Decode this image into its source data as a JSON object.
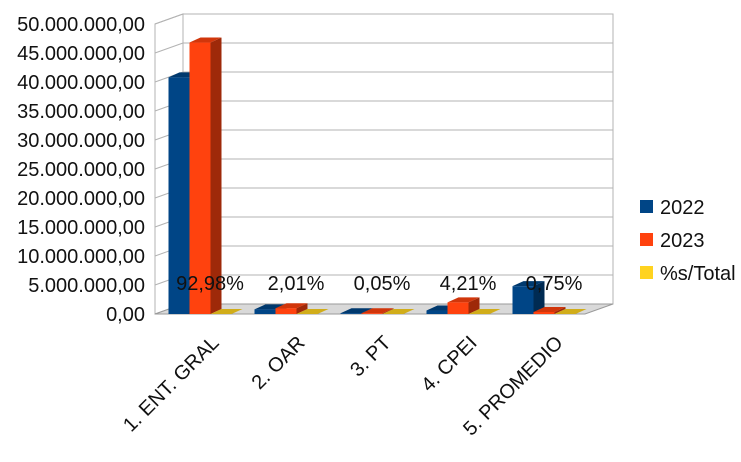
{
  "chart_data": {
    "type": "bar",
    "categories": [
      "1. ENT. GRAL",
      "2. OAR",
      "3. PT",
      "4. CPEI",
      "5. PROMEDIO"
    ],
    "series": [
      {
        "name": "2022",
        "values": [
          40800000,
          800000,
          50000,
          600000,
          4800000
        ],
        "color": "#004586"
      },
      {
        "name": "2023",
        "values": [
          46800000,
          1000000,
          40000,
          2000000,
          350000
        ],
        "color": "#ff420e"
      },
      {
        "name": "%s/Total",
        "values": [
          0.9298,
          0.0201,
          0.0005,
          0.0421,
          0.0075
        ],
        "color": "#ffd320"
      }
    ],
    "data_labels": [
      "92,98%",
      "2,01%",
      "0,05%",
      "4,21%",
      "0,75%"
    ],
    "y_ticks": [
      "0,00",
      "5.000.000,00",
      "10.000.000,00",
      "15.000.000,00",
      "20.000.000,00",
      "25.000.000,00",
      "30.000.000,00",
      "35.000.000,00",
      "40.000.000,00",
      "45.000.000,00",
      "50.000.000,00"
    ],
    "ylim": [
      0,
      50000000
    ],
    "grid": true,
    "legend_position": "right",
    "three_d": true
  }
}
